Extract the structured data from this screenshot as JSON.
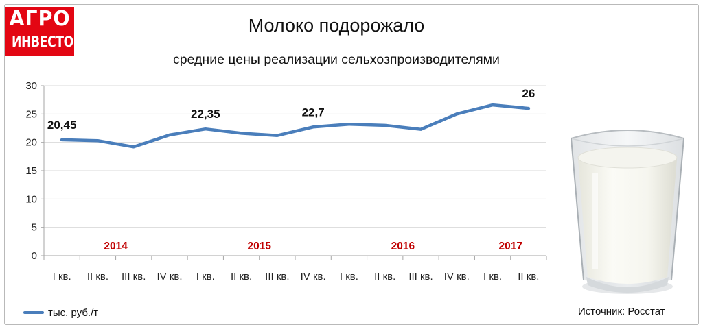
{
  "logo": {
    "line1": "АГРО",
    "line2": "ИНВЕСТОР",
    "color": "#e30613"
  },
  "header": {
    "title": "Молоко подорожало",
    "subtitle": "средние цены реализации сельхозпроизводителями"
  },
  "legend": {
    "label": "тыс. руб./т"
  },
  "source": "Источник: Росстат",
  "colors": {
    "series": "#4a7ebb",
    "year_label": "#c00000",
    "grid": "#d9d9d9"
  },
  "illustration": {
    "icon": "milk-glass-icon"
  },
  "chart_data": {
    "type": "line",
    "categories": [
      "I кв.",
      "II кв.",
      "III кв.",
      "IV кв.",
      "I кв.",
      "II кв.",
      "III кв.",
      "IV кв.",
      "I кв.",
      "II кв.",
      "III кв.",
      "IV кв.",
      "I кв.",
      "II кв."
    ],
    "series": [
      {
        "name": "тыс. руб./т",
        "values": [
          20.45,
          20.3,
          19.2,
          21.3,
          22.35,
          21.6,
          21.2,
          22.7,
          23.2,
          23.0,
          22.3,
          25.0,
          26.6,
          26.0
        ]
      }
    ],
    "data_labels": [
      {
        "index": 0,
        "text": "20,45"
      },
      {
        "index": 4,
        "text": "22,35"
      },
      {
        "index": 7,
        "text": "22,7"
      },
      {
        "index": 13,
        "text": "26"
      }
    ],
    "year_groups": [
      {
        "label": "2014",
        "start": 0,
        "end": 3
      },
      {
        "label": "2015",
        "start": 4,
        "end": 7
      },
      {
        "label": "2016",
        "start": 8,
        "end": 11
      },
      {
        "label": "2017",
        "start": 12,
        "end": 13
      }
    ],
    "ylim": [
      0,
      30
    ],
    "yticks": [
      "0",
      "5",
      "10",
      "15",
      "20",
      "25",
      "30"
    ],
    "grid": true,
    "legend_position": "bottom-left"
  }
}
